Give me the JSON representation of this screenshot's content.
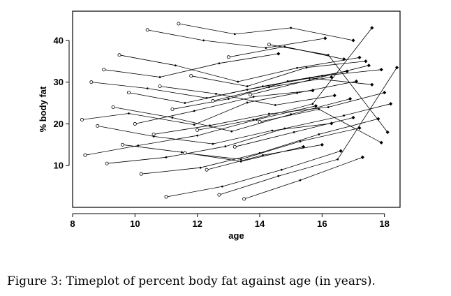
{
  "figure": {
    "caption": "Figure 3: Timeplot of percent body fat against age (in years)."
  },
  "chart_data": {
    "type": "line",
    "title": "",
    "xlabel": "age",
    "ylabel": "% body fat",
    "xlim": [
      8,
      18.5
    ],
    "ylim": [
      0,
      47
    ],
    "x_ticks": [
      "8",
      "10",
      "12",
      "14",
      "16",
      "18"
    ],
    "y_ticks": [
      "10",
      "20",
      "30",
      "40"
    ],
    "grid": false,
    "legend": "none",
    "marker_style": "open circle at first visit, filled diamond at last visit, small points at intermediate visits",
    "line_color": "#000000",
    "series": [
      {
        "x": [
          8.3,
          9.8,
          11.9,
          13.6,
          15.2,
          17.1
        ],
        "y": [
          21.0,
          22.5,
          19.8,
          25.1,
          27.4,
          30.2
        ]
      },
      {
        "x": [
          8.4,
          10.1,
          12.0,
          13.9,
          15.8
        ],
        "y": [
          12.5,
          14.8,
          17.2,
          21.0,
          24.3
        ]
      },
      {
        "x": [
          8.6,
          10.4,
          12.3,
          14.1,
          16.0,
          17.9
        ],
        "y": [
          30.0,
          28.5,
          26.2,
          29.0,
          31.5,
          33.0
        ]
      },
      {
        "x": [
          8.8,
          10.6,
          12.5,
          14.4,
          16.3
        ],
        "y": [
          19.5,
          17.0,
          15.2,
          18.4,
          20.1
        ]
      },
      {
        "x": [
          9.0,
          10.8,
          12.7,
          14.6
        ],
        "y": [
          33.0,
          31.2,
          34.5,
          36.8
        ]
      },
      {
        "x": [
          9.1,
          11.0,
          12.9,
          14.8,
          16.7,
          18.2
        ],
        "y": [
          10.5,
          12.0,
          14.6,
          18.9,
          22.0,
          24.8
        ]
      },
      {
        "x": [
          9.3,
          11.2,
          13.1,
          15.0,
          16.9
        ],
        "y": [
          24.0,
          21.5,
          18.2,
          22.3,
          26.0
        ]
      },
      {
        "x": [
          9.5,
          11.3,
          13.3,
          15.2,
          17.2
        ],
        "y": [
          36.5,
          34.0,
          30.1,
          33.4,
          35.9
        ]
      },
      {
        "x": [
          9.6,
          11.5,
          13.4,
          15.4
        ],
        "y": [
          15.0,
          13.2,
          11.0,
          14.5
        ]
      },
      {
        "x": [
          9.8,
          11.6,
          13.6,
          15.6,
          17.6
        ],
        "y": [
          27.5,
          25.0,
          28.2,
          31.0,
          29.4
        ]
      },
      {
        "x": [
          10.0,
          11.9,
          13.8,
          15.7
        ],
        "y": [
          20.0,
          23.1,
          26.5,
          28.0
        ]
      },
      {
        "x": [
          10.2,
          12.1,
          14.0,
          15.9,
          17.8
        ],
        "y": [
          8.0,
          9.5,
          13.0,
          17.5,
          21.2
        ]
      },
      {
        "x": [
          10.4,
          12.2,
          14.2,
          16.1
        ],
        "y": [
          42.5,
          40.0,
          38.2,
          40.5
        ]
      },
      {
        "x": [
          10.6,
          12.4,
          14.3,
          16.2,
          18.0
        ],
        "y": [
          17.5,
          19.6,
          22.4,
          24.0,
          27.5
        ]
      },
      {
        "x": [
          10.8,
          12.6,
          14.5,
          16.4
        ],
        "y": [
          29.0,
          27.2,
          24.5,
          26.8
        ]
      },
      {
        "x": [
          11.0,
          12.8,
          14.7,
          16.6
        ],
        "y": [
          2.5,
          5.0,
          9.0,
          13.5
        ]
      },
      {
        "x": [
          11.2,
          13.0,
          14.9,
          16.8
        ],
        "y": [
          23.5,
          26.0,
          30.2,
          32.6
        ]
      },
      {
        "x": [
          11.4,
          13.2,
          15.0,
          17.0
        ],
        "y": [
          44.0,
          41.5,
          43.0,
          40.0
        ]
      },
      {
        "x": [
          11.6,
          13.4,
          15.3,
          17.2
        ],
        "y": [
          13.0,
          11.5,
          15.8,
          19.0
        ]
      },
      {
        "x": [
          11.8,
          13.6,
          15.5,
          17.4
        ],
        "y": [
          31.5,
          29.0,
          33.5,
          35.0
        ]
      },
      {
        "x": [
          12.0,
          13.8,
          15.7,
          17.6
        ],
        "y": [
          18.5,
          21.0,
          24.8,
          43.0
        ]
      },
      {
        "x": [
          12.3,
          14.1,
          16.0
        ],
        "y": [
          9.0,
          12.5,
          15.0
        ]
      },
      {
        "x": [
          12.5,
          14.3,
          16.3
        ],
        "y": [
          25.5,
          28.8,
          31.2
        ]
      },
      {
        "x": [
          12.7,
          14.6,
          16.5,
          18.4
        ],
        "y": [
          3.0,
          7.5,
          11.5,
          33.5
        ]
      },
      {
        "x": [
          13.0,
          14.8,
          16.7
        ],
        "y": [
          36.0,
          38.5,
          35.5
        ]
      },
      {
        "x": [
          13.2,
          15.1,
          17.0
        ],
        "y": [
          14.5,
          18.0,
          21.5
        ]
      },
      {
        "x": [
          13.5,
          15.3,
          17.3
        ],
        "y": [
          2.0,
          6.5,
          12.0
        ]
      },
      {
        "x": [
          13.7,
          15.6,
          17.5
        ],
        "y": [
          27.0,
          30.5,
          34.0
        ]
      },
      {
        "x": [
          14.0,
          15.9,
          17.9
        ],
        "y": [
          20.5,
          23.5,
          15.5
        ]
      },
      {
        "x": [
          14.3,
          16.2,
          18.1
        ],
        "y": [
          39.0,
          36.5,
          18.0
        ]
      }
    ]
  }
}
